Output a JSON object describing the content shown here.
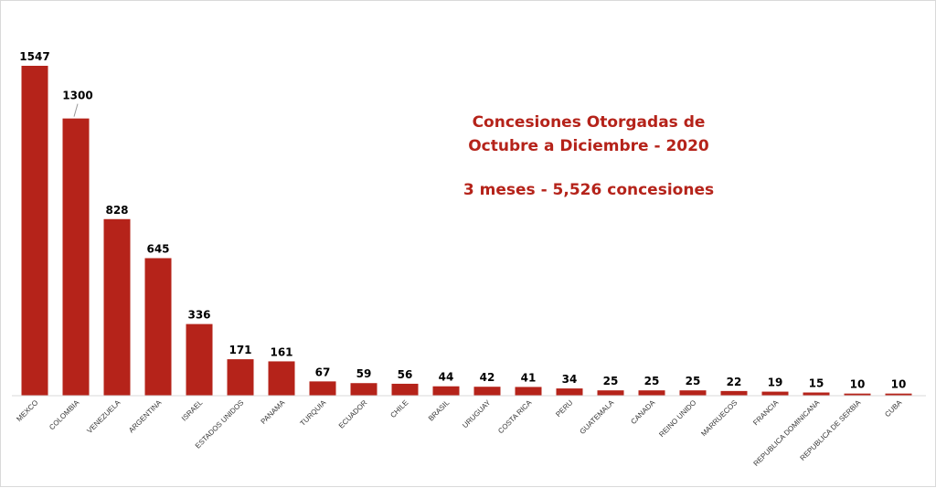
{
  "chart_data": {
    "type": "bar",
    "title_lines": [
      "Concesiones Otorgadas de",
      "Octubre a Diciembre - 2020"
    ],
    "subtitle": "3 meses - 5,526 concesiones",
    "categories": [
      "MEXCO",
      "COLOMBIA",
      "VENEZUELA",
      "ARGENTINA",
      "ISRAEL",
      "ESTADOS UNIDOS",
      "PANAMA",
      "TURQUIA",
      "ECUADOR",
      "CHILE",
      "BRASIL",
      "URUGUAY",
      "COSTA RICA",
      "PERU",
      "GUATEMALA",
      "CANADA",
      "REINO UNIDO",
      "MARRUECOS",
      "FRANCIA",
      "REPUBLICA DOMINICANA",
      "REPUBLICA DE SERBIA",
      "CUBA"
    ],
    "values": [
      1547,
      1300,
      828,
      645,
      336,
      171,
      161,
      67,
      59,
      56,
      44,
      42,
      41,
      34,
      25,
      25,
      25,
      22,
      19,
      15,
      10,
      10
    ],
    "ylim": [
      0,
      1547
    ],
    "grid": false,
    "legend": "none",
    "xlabel": "",
    "ylabel": "",
    "colors": {
      "bar": "#b5231a",
      "title": "#b5231a",
      "axis": "#d9d9d9"
    }
  }
}
